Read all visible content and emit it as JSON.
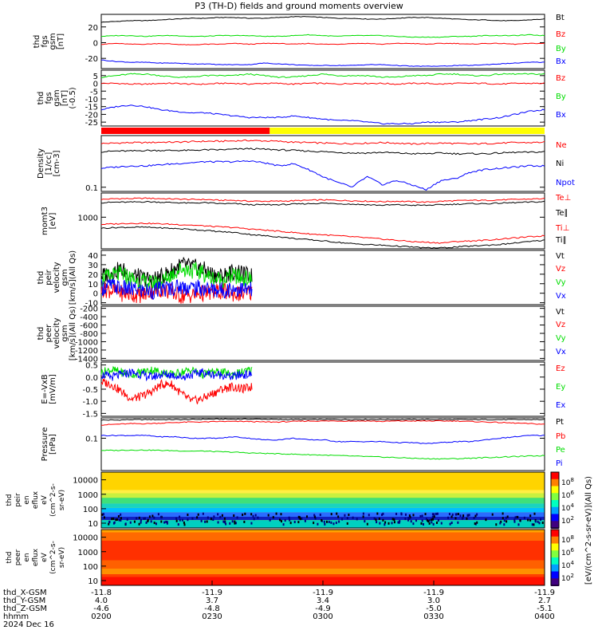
{
  "title": "P3 (TH-D) fields and ground moments overview",
  "date_label": "2024 Dec 16",
  "ephemeris": {
    "rows": [
      {
        "label": "thd_X-GSM",
        "values": [
          "-11.8",
          "-11.9",
          "-11.9",
          "-11.9",
          "-11.9"
        ]
      },
      {
        "label": "thd_Y-GSM",
        "values": [
          "4.0",
          "3.7",
          "3.4",
          "3.0",
          "2.7"
        ]
      },
      {
        "label": "thd_Z-GSM",
        "values": [
          "-4.6",
          "-4.8",
          "-4.9",
          "-5.0",
          "-5.1"
        ]
      },
      {
        "label": "hhmm",
        "values": [
          "0200",
          "0230",
          "0300",
          "0330",
          "0400"
        ]
      }
    ]
  },
  "colors": {
    "black": "#000000",
    "red": "#ff0000",
    "green": "#00dd00",
    "blue": "#0000ff",
    "yellow": "#ffff00"
  },
  "chart_data": [
    {
      "type": "line",
      "id": "p1",
      "ylabel": [
        "thd",
        "fgs",
        "gsm",
        "[nT]"
      ],
      "ylim": [
        -33,
        36
      ],
      "yticks": [
        20,
        0,
        -20
      ],
      "ytick_labels": [
        "20",
        "0",
        "-20"
      ],
      "scale": "linear",
      "series": [
        {
          "name": "Bt",
          "color": "black",
          "values": [
            26,
            27,
            28,
            28,
            29,
            30,
            31,
            31,
            32,
            32,
            31,
            31,
            32,
            33,
            33,
            32,
            31,
            31,
            30,
            30,
            31,
            32,
            32,
            31,
            30,
            29,
            29,
            28,
            28,
            29,
            30
          ]
        },
        {
          "name": "Bz",
          "color": "red",
          "values": [
            -2,
            -1,
            -2,
            -2,
            -1,
            -2,
            -3,
            -2,
            -2,
            -1,
            -2,
            -1,
            -1,
            -2,
            -1,
            -2,
            -2,
            -1,
            -1,
            -2,
            -1,
            -1,
            -2,
            -1,
            -1,
            -2,
            -1,
            -1,
            -2,
            -1,
            -1
          ]
        },
        {
          "name": "By",
          "color": "green",
          "values": [
            8,
            9,
            9,
            8,
            9,
            9,
            8,
            8,
            9,
            9,
            9,
            8,
            8,
            9,
            10,
            9,
            8,
            9,
            9,
            9,
            8,
            7,
            7,
            7,
            8,
            8,
            9,
            9,
            9,
            10,
            9
          ]
        },
        {
          "name": "Bx",
          "color": "blue",
          "values": [
            -22,
            -24,
            -25,
            -25,
            -26,
            -26,
            -27,
            -27,
            -28,
            -28,
            -28,
            -26,
            -27,
            -28,
            -29,
            -29,
            -29,
            -29,
            -28,
            -28,
            -29,
            -30,
            -30,
            -30,
            -29,
            -29,
            -28,
            -27,
            -26,
            -25,
            -25
          ]
        }
      ]
    },
    {
      "type": "line",
      "id": "p2",
      "ylabel": [
        "thd",
        "fgs",
        "gsm",
        "[nT]",
        "(-0.5)"
      ],
      "ylim": [
        -27.5,
        8.5
      ],
      "yticks": [
        5,
        0,
        -5,
        -10,
        -15,
        -20,
        -25
      ],
      "ytick_labels": [
        "5",
        "0",
        "-5",
        "-10",
        "-15",
        "-20",
        "-25"
      ],
      "scale": "linear",
      "series": [
        {
          "name": "Bz",
          "color": "red",
          "values": [
            0,
            0,
            -0.5,
            -0.5,
            0,
            0,
            -0.5,
            -0.5,
            0,
            0,
            -0.5,
            0,
            0,
            -0.5,
            0,
            0,
            -0.5,
            0,
            0,
            0,
            -0.5,
            0,
            0,
            -0.5,
            0,
            0,
            0,
            -0.5,
            0,
            0,
            0
          ]
        },
        {
          "name": "By",
          "color": "green",
          "values": [
            4,
            5,
            6,
            6,
            5,
            4,
            4,
            5,
            5,
            5,
            6,
            5,
            4,
            4,
            5,
            6,
            5,
            5,
            5,
            4,
            4,
            5,
            5,
            6,
            6,
            5,
            5,
            6,
            6,
            6,
            6
          ]
        },
        {
          "name": "Bx",
          "color": "blue",
          "values": [
            -17,
            -15,
            -14,
            -15,
            -17,
            -18,
            -19,
            -19,
            -20,
            -21,
            -22,
            -22,
            -22,
            -21,
            -22,
            -23,
            -24,
            -24,
            -25,
            -26,
            -26,
            -26,
            -25,
            -25,
            -25,
            -24,
            -23,
            -22,
            -20,
            -18,
            -17
          ]
        }
      ]
    },
    {
      "type": "line",
      "id": "p3",
      "ylabel": [
        "Density",
        "[1/cc]",
        "[cm-3]"
      ],
      "ylim": [
        0.085,
        0.75
      ],
      "yticks": [
        0.1
      ],
      "ytick_labels": [
        "0.1"
      ],
      "scale": "log",
      "series": [
        {
          "name": "Ne",
          "color": "red",
          "values": [
            0.55,
            0.56,
            0.57,
            0.57,
            0.58,
            0.58,
            0.59,
            0.6,
            0.6,
            0.61,
            0.62,
            0.61,
            0.6,
            0.58,
            0.57,
            0.56,
            0.55,
            0.55,
            0.56,
            0.57,
            0.56,
            0.54,
            0.55,
            0.56,
            0.55,
            0.54,
            0.55,
            0.56,
            0.57,
            0.57,
            0.58
          ]
        },
        {
          "name": "Ni",
          "color": "black",
          "values": [
            0.4,
            0.41,
            0.41,
            0.42,
            0.42,
            0.42,
            0.42,
            0.43,
            0.43,
            0.44,
            0.45,
            0.44,
            0.43,
            0.42,
            0.41,
            0.4,
            0.39,
            0.38,
            0.38,
            0.39,
            0.38,
            0.37,
            0.37,
            0.38,
            0.37,
            0.37,
            0.37,
            0.38,
            0.39,
            0.39,
            0.4
          ]
        },
        {
          "name": "Npot",
          "color": "blue",
          "values": [
            0.21,
            0.22,
            0.23,
            0.23,
            0.24,
            0.25,
            0.26,
            0.27,
            0.27,
            0.27,
            0.28,
            0.26,
            0.23,
            0.25,
            0.2,
            0.15,
            0.12,
            0.1,
            0.15,
            0.11,
            0.13,
            0.11,
            0.09,
            0.13,
            0.14,
            0.18,
            0.2,
            0.21,
            0.22,
            0.23,
            0.23
          ]
        }
      ]
    },
    {
      "type": "line",
      "id": "p4",
      "ylabel": [
        "momt3",
        "[eV]"
      ],
      "ylim": [
        210,
        3300
      ],
      "yticks": [
        1000
      ],
      "ytick_labels": [
        "1000"
      ],
      "scale": "log",
      "series": [
        {
          "name": "Te⊥",
          "color": "red",
          "values": [
            2400,
            2500,
            2500,
            2550,
            2500,
            2450,
            2400,
            2400,
            2300,
            2300,
            2200,
            2200,
            2200,
            2250,
            2300,
            2350,
            2300,
            2250,
            2200,
            2150,
            2200,
            2150,
            2100,
            2200,
            2250,
            2300,
            2300,
            2350,
            2400,
            2450,
            2500
          ]
        },
        {
          "name": "Te∥",
          "color": "black",
          "values": [
            2050,
            2100,
            2100,
            2150,
            2100,
            2050,
            2000,
            2050,
            1950,
            1950,
            1850,
            1850,
            1850,
            1900,
            1950,
            2000,
            1950,
            1900,
            1850,
            1800,
            1850,
            1800,
            1800,
            1850,
            1900,
            1950,
            1950,
            2000,
            2050,
            2100,
            2150
          ]
        },
        {
          "name": "Ti⊥",
          "color": "red",
          "values": [
            700,
            720,
            740,
            740,
            720,
            700,
            680,
            650,
            620,
            600,
            560,
            530,
            500,
            470,
            440,
            420,
            400,
            380,
            360,
            340,
            320,
            300,
            290,
            280,
            300,
            310,
            320,
            340,
            360,
            380,
            400
          ]
        },
        {
          "name": "Ti∥",
          "color": "black",
          "values": [
            580,
            600,
            610,
            610,
            590,
            570,
            550,
            520,
            490,
            470,
            430,
            400,
            380,
            350,
            330,
            310,
            290,
            270,
            260,
            250,
            240,
            230,
            220,
            220,
            230,
            240,
            250,
            260,
            280,
            300,
            320
          ]
        }
      ]
    },
    {
      "type": "line",
      "id": "p5",
      "ylabel": [
        "thd",
        "peir",
        "velocity",
        "gsm",
        "[km/s](All Qs)"
      ],
      "ylim": [
        -12,
        45
      ],
      "yticks": [
        40,
        30,
        20,
        10,
        0,
        -10
      ],
      "ytick_labels": [
        "40",
        "30",
        "20",
        "10",
        "0",
        "-10"
      ],
      "scale": "linear",
      "x_end_fraction": 0.34,
      "series": [
        {
          "name": "Vt",
          "color": "black",
          "values": [
            18,
            22,
            25,
            20,
            16,
            14,
            17,
            24,
            30,
            28,
            26,
            20,
            18,
            22,
            20,
            18
          ]
        },
        {
          "name": "Vz",
          "color": "red",
          "values": [
            5,
            3,
            0,
            -1,
            -2,
            2,
            4,
            1,
            -3,
            -2,
            0,
            1,
            2,
            0,
            -1,
            1
          ]
        },
        {
          "name": "Vy",
          "color": "green",
          "values": [
            15,
            18,
            20,
            15,
            12,
            10,
            12,
            20,
            26,
            24,
            22,
            16,
            14,
            18,
            16,
            14
          ]
        },
        {
          "name": "Vx",
          "color": "blue",
          "values": [
            6,
            8,
            5,
            4,
            3,
            2,
            4,
            6,
            7,
            6,
            5,
            4,
            3,
            5,
            4,
            3
          ]
        }
      ]
    },
    {
      "type": "line",
      "id": "p6",
      "ylabel": [
        "thd",
        "peer",
        "velocity",
        "gsm",
        "[km/s](All Qs)"
      ],
      "ylim": [
        -1450,
        -150
      ],
      "yticks": [
        -200,
        -400,
        -600,
        -800,
        -1000,
        -1200,
        -1400
      ],
      "ytick_labels": [
        "-200",
        "-400",
        "-600",
        "-800",
        "-1000",
        "-1200",
        "-1400"
      ],
      "scale": "linear",
      "series": [
        {
          "name": "Vt",
          "color": "black",
          "values": []
        },
        {
          "name": "Vz",
          "color": "red",
          "values": []
        },
        {
          "name": "Vy",
          "color": "green",
          "values": []
        },
        {
          "name": "Vx",
          "color": "blue",
          "values": []
        }
      ]
    },
    {
      "type": "line",
      "id": "p7",
      "ylabel": [
        "E=-VxB",
        "[mV/m]"
      ],
      "ylim": [
        -1.62,
        0.62
      ],
      "yticks": [
        0.5,
        0.0,
        -0.5,
        -1.0,
        -1.5
      ],
      "ytick_labels": [
        "0.5",
        "0.0",
        "-0.5",
        "-1.0",
        "-1.5"
      ],
      "scale": "linear",
      "x_end_fraction": 0.34,
      "series": [
        {
          "name": "Ez",
          "color": "red",
          "values": [
            -0.2,
            -0.3,
            -0.6,
            -0.9,
            -0.8,
            -0.6,
            -0.3,
            -0.3,
            -0.7,
            -1.0,
            -0.9,
            -0.7,
            -0.5,
            -0.4,
            -0.5,
            -0.4
          ]
        },
        {
          "name": "Ey",
          "color": "green",
          "values": [
            0.2,
            0.3,
            0.2,
            0.1,
            0.2,
            0.3,
            0.2,
            0.1,
            0.2,
            0.3,
            0.1,
            0.2,
            0.2,
            0.1,
            0.2,
            0.3
          ]
        },
        {
          "name": "Ex",
          "color": "blue",
          "values": [
            0.1,
            0.0,
            0.1,
            0.2,
            0.1,
            0.0,
            0.1,
            0.1,
            0.0,
            0.1,
            0.2,
            0.1,
            0.1,
            0.0,
            0.1,
            0.1
          ]
        }
      ]
    },
    {
      "type": "line",
      "id": "p8",
      "ylabel": [
        "Pressure",
        "[nPa]"
      ],
      "ylim": [
        0.012,
        0.38
      ],
      "yticks": [
        0.1
      ],
      "ytick_labels": [
        "0.1"
      ],
      "scale": "log",
      "series": [
        {
          "name": "Pt",
          "color": "black",
          "values": [
            0.33,
            0.33,
            0.34,
            0.34,
            0.34,
            0.34,
            0.34,
            0.35,
            0.35,
            0.35,
            0.35,
            0.35,
            0.34,
            0.34,
            0.34,
            0.34,
            0.34,
            0.34,
            0.34,
            0.34,
            0.34,
            0.34,
            0.34,
            0.34,
            0.34,
            0.34,
            0.34,
            0.34,
            0.34,
            0.34,
            0.34
          ]
        },
        {
          "name": "Pb",
          "color": "red",
          "values": [
            0.24,
            0.25,
            0.26,
            0.26,
            0.27,
            0.28,
            0.29,
            0.29,
            0.3,
            0.3,
            0.3,
            0.29,
            0.29,
            0.3,
            0.31,
            0.31,
            0.31,
            0.31,
            0.31,
            0.3,
            0.31,
            0.31,
            0.31,
            0.31,
            0.31,
            0.3,
            0.29,
            0.28,
            0.27,
            0.26,
            0.25
          ]
        },
        {
          "name": "Pe",
          "color": "green",
          "values": [
            0.045,
            0.045,
            0.046,
            0.046,
            0.045,
            0.044,
            0.043,
            0.043,
            0.041,
            0.04,
            0.038,
            0.037,
            0.036,
            0.035,
            0.034,
            0.033,
            0.032,
            0.031,
            0.03,
            0.029,
            0.028,
            0.027,
            0.026,
            0.026,
            0.026,
            0.027,
            0.028,
            0.029,
            0.03,
            0.031,
            0.032
          ]
        },
        {
          "name": "Pi",
          "color": "blue",
          "values": [
            0.12,
            0.12,
            0.12,
            0.12,
            0.11,
            0.11,
            0.1,
            0.1,
            0.1,
            0.11,
            0.1,
            0.09,
            0.09,
            0.1,
            0.09,
            0.09,
            0.08,
            0.08,
            0.08,
            0.08,
            0.075,
            0.075,
            0.07,
            0.075,
            0.08,
            0.08,
            0.09,
            0.1,
            0.11,
            0.12,
            0.12
          ]
        }
      ]
    },
    {
      "type": "heatmap",
      "id": "s1",
      "ylabel": [
        "thd",
        "peir",
        "en",
        "eflux",
        "eV",
        "(cm^2-s-",
        "sr-eV)"
      ],
      "yticks": [
        10000,
        1000,
        100,
        10
      ],
      "ytick_labels": [
        "10000",
        "1000",
        "100",
        "10"
      ],
      "colorbar_ticks": [
        "10^8",
        "10^6",
        "10^4",
        "10^2"
      ],
      "colorbar_label": "[eV/(cm^2-s-sr-eV)](All Qs)"
    },
    {
      "type": "heatmap",
      "id": "s2",
      "ylabel": [
        "thd",
        "peer",
        "en",
        "eflux",
        "eV",
        "(cm^2-s-",
        "sr-eV)"
      ],
      "yticks": [
        10000,
        1000,
        100,
        10
      ],
      "ytick_labels": [
        "10000",
        "1000",
        "100",
        "10"
      ],
      "colorbar_ticks": [
        "10^8",
        "10^6",
        "10^4",
        "10^2"
      ],
      "colorbar_label": "[eV/(cm^2-s-sr-eV)](All Qs)"
    }
  ],
  "mode_bar": {
    "segments": [
      {
        "color": "red",
        "from": 0.0,
        "to": 0.38
      },
      {
        "color": "yellow",
        "from": 0.38,
        "to": 1.0
      }
    ]
  }
}
